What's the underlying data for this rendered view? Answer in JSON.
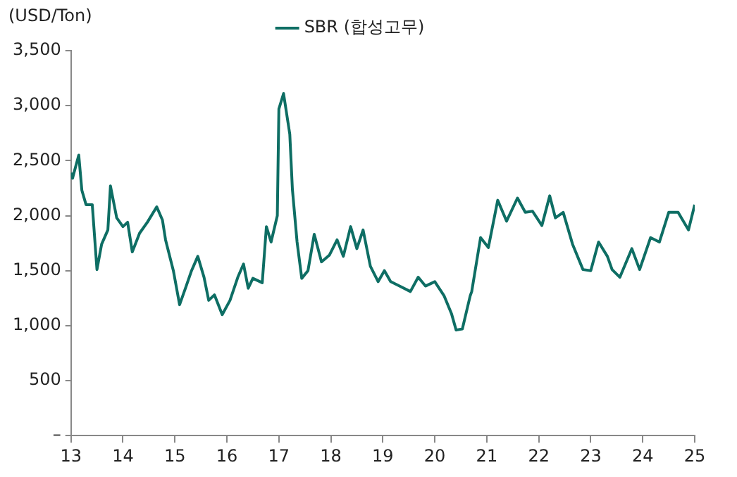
{
  "chart_data": {
    "type": "line",
    "ylabel": "(USD/Ton)",
    "legend": "top",
    "xlim": [
      13,
      25
    ],
    "xticks": [
      13,
      14,
      15,
      16,
      17,
      18,
      19,
      20,
      21,
      22,
      23,
      24,
      25
    ],
    "ylim": [
      0,
      3500
    ],
    "yticks": [
      {
        "value": 0,
        "label": "–"
      },
      500,
      {
        "value": 1000,
        "label": "1,000"
      },
      {
        "value": 1500,
        "label": "1,500"
      },
      {
        "value": 2000,
        "label": "2,000"
      },
      {
        "value": 2500,
        "label": "2,500"
      },
      {
        "value": 3000,
        "label": "3,000"
      },
      {
        "value": 3500,
        "label": "3,500"
      }
    ],
    "grid": false,
    "marker": "none",
    "line_style": "solid",
    "series": [
      {
        "name": "SBR (합성고무)",
        "color": "#0e6e64",
        "x": [
          13.0,
          13.03,
          13.15,
          13.21,
          13.29,
          13.41,
          13.5,
          13.59,
          13.71,
          13.76,
          13.88,
          14.0,
          14.09,
          14.18,
          14.32,
          14.47,
          14.65,
          14.76,
          14.82,
          14.97,
          15.09,
          15.21,
          15.32,
          15.44,
          15.56,
          15.65,
          15.76,
          15.91,
          16.06,
          16.21,
          16.32,
          16.41,
          16.5,
          16.68,
          16.76,
          16.85,
          16.97,
          17.0,
          17.09,
          17.21,
          17.26,
          17.35,
          17.44,
          17.56,
          17.68,
          17.82,
          17.97,
          18.12,
          18.24,
          18.38,
          18.5,
          18.62,
          18.76,
          18.91,
          19.03,
          19.15,
          19.32,
          19.53,
          19.68,
          19.82,
          20.0,
          20.18,
          20.32,
          20.41,
          20.53,
          20.68,
          20.71,
          20.88,
          21.03,
          21.21,
          21.38,
          21.59,
          21.74,
          21.88,
          22.06,
          22.21,
          22.32,
          22.47,
          22.65,
          22.85,
          23.0,
          23.15,
          23.32,
          23.41,
          23.56,
          23.79,
          23.94,
          24.15,
          24.32,
          24.5,
          24.68,
          24.88,
          25.0
        ],
        "values": [
          2390,
          2340,
          2550,
          2230,
          2100,
          2100,
          1510,
          1740,
          1870,
          2270,
          1980,
          1900,
          1940,
          1670,
          1840,
          1940,
          2080,
          1960,
          1780,
          1500,
          1190,
          1350,
          1500,
          1630,
          1440,
          1230,
          1280,
          1100,
          1230,
          1440,
          1560,
          1340,
          1430,
          1390,
          1900,
          1760,
          2000,
          2970,
          3110,
          2740,
          2240,
          1760,
          1430,
          1500,
          1830,
          1580,
          1640,
          1780,
          1630,
          1900,
          1700,
          1870,
          1540,
          1400,
          1500,
          1400,
          1360,
          1310,
          1440,
          1360,
          1400,
          1270,
          1110,
          960,
          970,
          1270,
          1310,
          1800,
          1710,
          2140,
          1950,
          2160,
          2030,
          2040,
          1910,
          2180,
          1980,
          2030,
          1740,
          1510,
          1500,
          1760,
          1630,
          1510,
          1440,
          1700,
          1510,
          1800,
          1760,
          2030,
          2030,
          1870,
          2100
        ]
      }
    ]
  }
}
